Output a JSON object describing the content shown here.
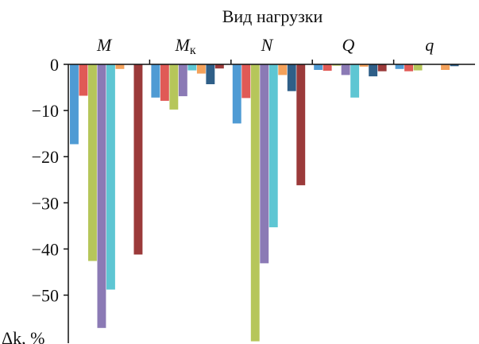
{
  "chart_data": {
    "type": "bar",
    "title": "Вид нагрузки",
    "ylabel": "Δk, %",
    "ylim": [
      -60,
      0
    ],
    "yticks": [
      0,
      -10,
      -20,
      -30,
      -40,
      -50
    ],
    "grid": false,
    "legend": "none",
    "categories": [
      {
        "main": "M",
        "sub": ""
      },
      {
        "main": "M",
        "sub": "к"
      },
      {
        "main": "N",
        "sub": ""
      },
      {
        "main": "Q",
        "sub": ""
      },
      {
        "main": "q",
        "sub": ""
      }
    ],
    "series": [
      {
        "color": "#4f9bd4",
        "values": [
          -17.3,
          -7.2,
          -12.8,
          -1.2,
          -1.0
        ]
      },
      {
        "color": "#e05a56",
        "values": [
          -6.8,
          -7.9,
          -7.3,
          -1.4,
          -1.5
        ]
      },
      {
        "color": "#b6c65a",
        "values": [
          -42.6,
          -9.8,
          -60.0,
          -0.3,
          -1.3
        ]
      },
      {
        "color": "#8b7ab5",
        "values": [
          -57.1,
          -6.9,
          -43.1,
          -2.3,
          0
        ]
      },
      {
        "color": "#5ec6d3",
        "values": [
          -48.8,
          -1.3,
          -35.3,
          -7.2,
          0
        ]
      },
      {
        "color": "#f4a15a",
        "values": [
          -1.0,
          -2.0,
          -2.3,
          -0.5,
          -1.2
        ]
      },
      {
        "color": "#2f5f88",
        "values": [
          0,
          -4.3,
          -5.8,
          -2.6,
          -0.4
        ]
      },
      {
        "color": "#9b3a3a",
        "values": [
          -41.2,
          -0.9,
          -26.2,
          -1.5,
          0
        ]
      }
    ]
  }
}
